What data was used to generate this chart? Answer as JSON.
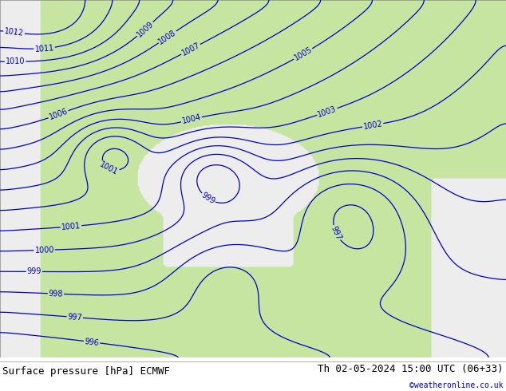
{
  "title_left": "Surface pressure [hPa] ECMWF",
  "title_right": "Th 02-05-2024 15:00 UTC (06+33)",
  "copyright": "©weatheronline.co.uk",
  "copyright_color": "#0000cc",
  "bg_color": "#ffffff",
  "land_color_r": 0.78,
  "land_color_g": 0.9,
  "land_color_b": 0.63,
  "sea_color_r": 0.93,
  "sea_color_g": 0.93,
  "sea_color_b": 0.93,
  "contour_color": "#0000cc",
  "contour_linewidth": 0.9,
  "label_fontsize": 7,
  "footer_fontsize": 9,
  "footer_bg": "#ffffff",
  "pressure_levels": [
    996,
    997,
    998,
    999,
    1000,
    1001,
    1002,
    1003,
    1004,
    1005,
    1006,
    1007,
    1008,
    1009,
    1010,
    1011,
    1012
  ],
  "figsize": [
    6.34,
    4.9
  ],
  "dpi": 100
}
